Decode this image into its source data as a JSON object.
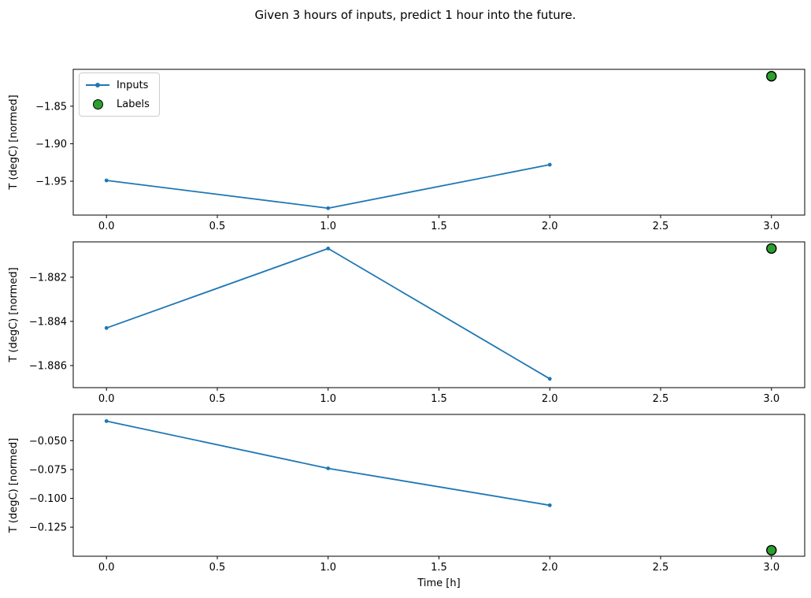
{
  "title": "Given 3 hours of inputs, predict 1 hour into the future.",
  "legend": {
    "items": [
      {
        "label": "Inputs",
        "marker": "line-with-dot"
      },
      {
        "label": "Labels",
        "marker": "filled-circle"
      }
    ]
  },
  "colors": {
    "inputs_line": "#1f77b4",
    "labels_fill": "#2ca02c",
    "labels_edge": "#000000",
    "axis": "#000000",
    "text": "#000000"
  },
  "chart_data": [
    {
      "type": "line+scatter",
      "ylabel": "T (degC) [normed]",
      "xlabel": "",
      "x": [
        0,
        1,
        2
      ],
      "series": [
        {
          "name": "Inputs",
          "values": [
            -1.949,
            -1.986,
            -1.928
          ]
        }
      ],
      "labels_point": {
        "name": "Labels",
        "x": 3,
        "y": -1.81
      },
      "xticks": [
        "0.0",
        "0.5",
        "1.0",
        "1.5",
        "2.0",
        "2.5",
        "3.0"
      ],
      "xtick_values": [
        0,
        0.5,
        1,
        1.5,
        2,
        2.5,
        3
      ],
      "yticks": [
        "−1.85",
        "−1.90",
        "−1.95"
      ],
      "ytick_values": [
        -1.85,
        -1.9,
        -1.95
      ],
      "xlim": [
        -0.15,
        3.15
      ],
      "ylim": [
        -1.9952,
        -1.8008
      ],
      "grid": false,
      "legend_position": "upper-left"
    },
    {
      "type": "line+scatter",
      "ylabel": "T (degC) [normed]",
      "xlabel": "",
      "x": [
        0,
        1,
        2
      ],
      "series": [
        {
          "name": "Inputs",
          "values": [
            -1.8843,
            -1.8807,
            -1.8866
          ]
        }
      ],
      "labels_point": {
        "name": "Labels",
        "x": 3,
        "y": -1.8807
      },
      "xticks": [
        "0.0",
        "0.5",
        "1.0",
        "1.5",
        "2.0",
        "2.5",
        "3.0"
      ],
      "xtick_values": [
        0,
        0.5,
        1,
        1.5,
        2,
        2.5,
        3
      ],
      "yticks": [
        "−1.882",
        "−1.884",
        "−1.886"
      ],
      "ytick_values": [
        -1.882,
        -1.884,
        -1.886
      ],
      "xlim": [
        -0.15,
        3.15
      ],
      "ylim": [
        -1.887,
        -1.8804
      ],
      "grid": false,
      "legend_position": "none"
    },
    {
      "type": "line+scatter",
      "ylabel": "T (degC) [normed]",
      "xlabel": "Time [h]",
      "x": [
        0,
        1,
        2
      ],
      "series": [
        {
          "name": "Inputs",
          "values": [
            -0.033,
            -0.074,
            -0.106
          ]
        }
      ],
      "labels_point": {
        "name": "Labels",
        "x": 3,
        "y": -0.145
      },
      "xticks": [
        "0.0",
        "0.5",
        "1.0",
        "1.5",
        "2.0",
        "2.5",
        "3.0"
      ],
      "xtick_values": [
        0,
        0.5,
        1,
        1.5,
        2,
        2.5,
        3
      ],
      "yticks": [
        "−0.050",
        "−0.075",
        "−0.100",
        "−0.125"
      ],
      "ytick_values": [
        -0.05,
        -0.075,
        -0.1,
        -0.125
      ],
      "xlim": [
        -0.15,
        3.15
      ],
      "ylim": [
        -0.1502,
        -0.0272
      ],
      "grid": false,
      "legend_position": "none"
    }
  ]
}
